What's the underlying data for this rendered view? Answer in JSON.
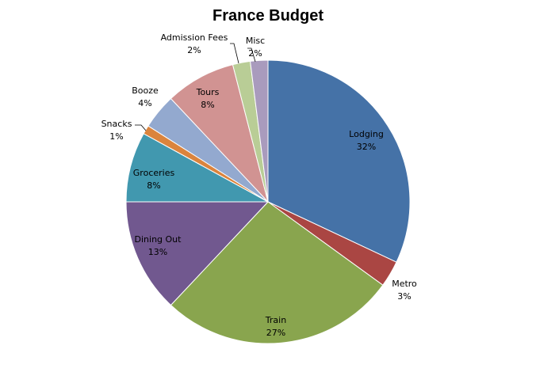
{
  "chart_data": {
    "type": "pie",
    "title": "France Budget",
    "start_angle_deg": 0,
    "direction": "clockwise",
    "slices": [
      {
        "label": "Lodging",
        "value": 32,
        "value_label": "32%",
        "color": "#4572A7"
      },
      {
        "label": "Metro",
        "value": 3,
        "value_label": "3%",
        "color": "#AA4643"
      },
      {
        "label": "Train",
        "value": 27,
        "value_label": "27%",
        "color": "#89A54E"
      },
      {
        "label": "Dining Out",
        "value": 13,
        "value_label": "13%",
        "color": "#71588F"
      },
      {
        "label": "Groceries",
        "value": 8,
        "value_label": "8%",
        "color": "#4198AF"
      },
      {
        "label": "Snacks",
        "value": 1,
        "value_label": "1%",
        "color": "#DB843D"
      },
      {
        "label": "Booze",
        "value": 4,
        "value_label": "4%",
        "color": "#93A9CF"
      },
      {
        "label": "Tours",
        "value": 8,
        "value_label": "8%",
        "color": "#D19392"
      },
      {
        "label": "Admission Fees",
        "value": 2,
        "value_label": "2%",
        "color": "#B9CD96"
      },
      {
        "label": "Misc",
        "value": 2,
        "value_label": "2%",
        "color": "#A99BBD"
      }
    ]
  }
}
